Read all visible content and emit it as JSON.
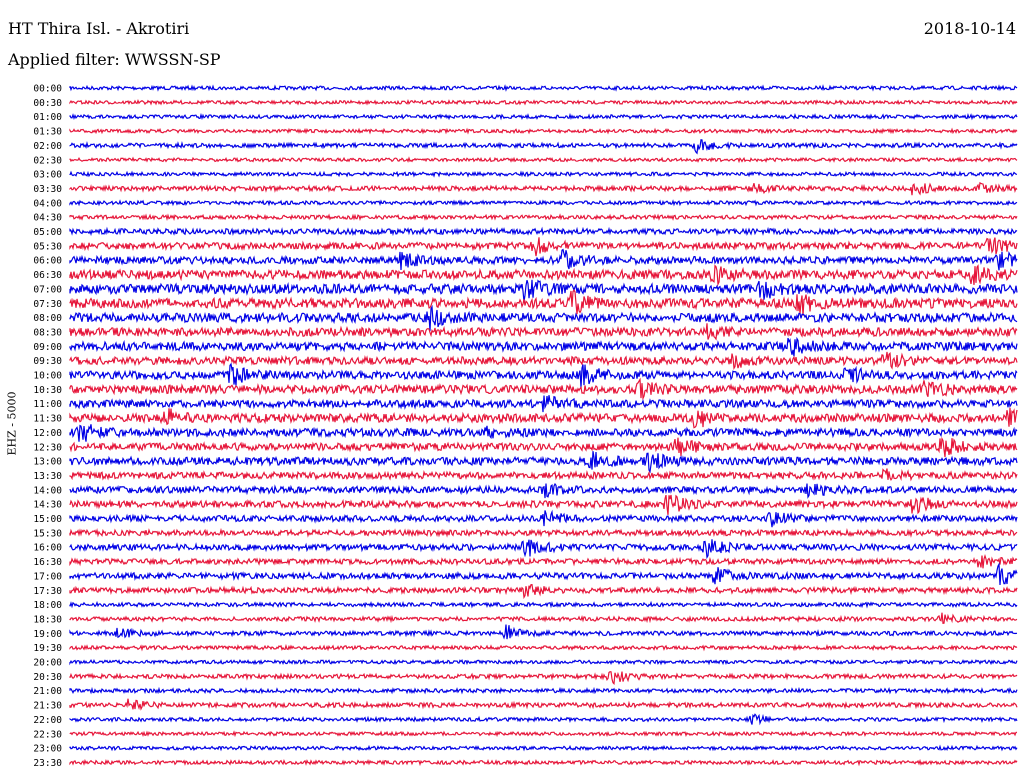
{
  "header": {
    "station": "HT Thira Isl. - Akrotiri",
    "date": "2018-10-14",
    "filter": "Applied filter: WWSSN-SP"
  },
  "chart_data": {
    "type": "line",
    "title": "HT Thira Isl. - Akrotiri",
    "ylabel": "EHZ - 5000",
    "row_interval_minutes": 30,
    "colors": {
      "odd": "#0000e6",
      "even": "#e6163a"
    },
    "rows": [
      {
        "label": "00:00",
        "level": 0.1
      },
      {
        "label": "00:30",
        "level": 0.08
      },
      {
        "label": "01:00",
        "level": 0.1
      },
      {
        "label": "01:30",
        "level": 0.08
      },
      {
        "label": "02:00",
        "level": 0.15,
        "events": [
          [
            0.66,
            0.6
          ]
        ]
      },
      {
        "label": "02:30",
        "level": 0.08
      },
      {
        "label": "03:00",
        "level": 0.1
      },
      {
        "label": "03:30",
        "level": 0.18,
        "events": [
          [
            0.72,
            0.45
          ],
          [
            0.89,
            0.6
          ],
          [
            0.96,
            0.4
          ]
        ]
      },
      {
        "label": "04:00",
        "level": 0.1
      },
      {
        "label": "04:30",
        "level": 0.12
      },
      {
        "label": "05:00",
        "level": 0.25
      },
      {
        "label": "05:30",
        "level": 0.35,
        "events": [
          [
            0.49,
            0.9
          ],
          [
            0.97,
            0.9
          ]
        ]
      },
      {
        "label": "06:00",
        "level": 0.4,
        "events": [
          [
            0.35,
            0.7
          ],
          [
            0.52,
            0.9
          ],
          [
            0.98,
            0.8
          ]
        ]
      },
      {
        "label": "06:30",
        "level": 0.55,
        "events": [
          [
            0.68,
            0.7
          ],
          [
            0.95,
            0.8
          ]
        ]
      },
      {
        "label": "07:00",
        "level": 0.6,
        "events": [
          [
            0.48,
            1.0
          ],
          [
            0.73,
            0.8
          ]
        ]
      },
      {
        "label": "07:30",
        "level": 0.6,
        "events": [
          [
            0.53,
            0.9
          ],
          [
            0.77,
            0.9
          ]
        ]
      },
      {
        "label": "08:00",
        "level": 0.55,
        "events": [
          [
            0.38,
            0.8
          ]
        ]
      },
      {
        "label": "08:30",
        "level": 0.5,
        "events": [
          [
            0.67,
            0.6
          ]
        ]
      },
      {
        "label": "09:00",
        "level": 0.5,
        "events": [
          [
            0.76,
            0.8
          ]
        ]
      },
      {
        "label": "09:30",
        "level": 0.45,
        "events": [
          [
            0.7,
            0.6
          ],
          [
            0.86,
            0.7
          ]
        ]
      },
      {
        "label": "10:00",
        "level": 0.45,
        "events": [
          [
            0.17,
            1.0
          ],
          [
            0.54,
            0.9
          ],
          [
            0.82,
            0.7
          ]
        ]
      },
      {
        "label": "10:30",
        "level": 0.5,
        "events": [
          [
            0.6,
            0.7
          ],
          [
            0.9,
            0.8
          ]
        ]
      },
      {
        "label": "11:00",
        "level": 0.45,
        "events": [
          [
            0.5,
            0.7
          ]
        ]
      },
      {
        "label": "11:30",
        "level": 0.5,
        "events": [
          [
            0.1,
            0.8
          ],
          [
            0.66,
            0.9
          ],
          [
            0.99,
            0.7
          ]
        ]
      },
      {
        "label": "12:00",
        "level": 0.45,
        "events": [
          [
            0.01,
            0.9
          ],
          [
            0.44,
            0.6
          ]
        ]
      },
      {
        "label": "12:30",
        "level": 0.4,
        "events": [
          [
            0.64,
            0.8
          ],
          [
            0.92,
            1.0
          ]
        ]
      },
      {
        "label": "13:00",
        "level": 0.45,
        "events": [
          [
            0.55,
            0.7
          ],
          [
            0.61,
            0.9
          ]
        ]
      },
      {
        "label": "13:30",
        "level": 0.35,
        "events": [
          [
            0.86,
            0.5
          ]
        ]
      },
      {
        "label": "14:00",
        "level": 0.35,
        "events": [
          [
            0.5,
            0.6
          ],
          [
            0.78,
            0.6
          ]
        ]
      },
      {
        "label": "14:30",
        "level": 0.35,
        "events": [
          [
            0.63,
            0.9
          ],
          [
            0.89,
            0.9
          ]
        ]
      },
      {
        "label": "15:00",
        "level": 0.3,
        "events": [
          [
            0.5,
            0.7
          ],
          [
            0.74,
            0.6
          ]
        ]
      },
      {
        "label": "15:30",
        "level": 0.25
      },
      {
        "label": "16:00",
        "level": 0.3,
        "events": [
          [
            0.48,
            1.0
          ],
          [
            0.67,
            0.9
          ]
        ]
      },
      {
        "label": "16:30",
        "level": 0.25,
        "events": [
          [
            0.96,
            0.6
          ]
        ]
      },
      {
        "label": "17:00",
        "level": 0.3,
        "events": [
          [
            0.68,
            0.7
          ],
          [
            0.98,
            1.0
          ]
        ]
      },
      {
        "label": "17:30",
        "level": 0.25,
        "events": [
          [
            0.48,
            0.5
          ]
        ]
      },
      {
        "label": "18:00",
        "level": 0.12
      },
      {
        "label": "18:30",
        "level": 0.15,
        "events": [
          [
            0.92,
            0.4
          ]
        ]
      },
      {
        "label": "19:00",
        "level": 0.15,
        "events": [
          [
            0.05,
            0.5
          ],
          [
            0.46,
            0.7
          ]
        ]
      },
      {
        "label": "19:30",
        "level": 0.1
      },
      {
        "label": "20:00",
        "level": 0.08
      },
      {
        "label": "20:30",
        "level": 0.15,
        "events": [
          [
            0.57,
            0.8
          ]
        ]
      },
      {
        "label": "21:00",
        "level": 0.12
      },
      {
        "label": "21:30",
        "level": 0.18,
        "events": [
          [
            0.06,
            0.5
          ]
        ]
      },
      {
        "label": "22:00",
        "level": 0.1,
        "events": [
          [
            0.72,
            0.4
          ]
        ]
      },
      {
        "label": "22:30",
        "level": 0.08
      },
      {
        "label": "23:00",
        "level": 0.08
      },
      {
        "label": "23:30",
        "level": 0.1
      }
    ]
  }
}
